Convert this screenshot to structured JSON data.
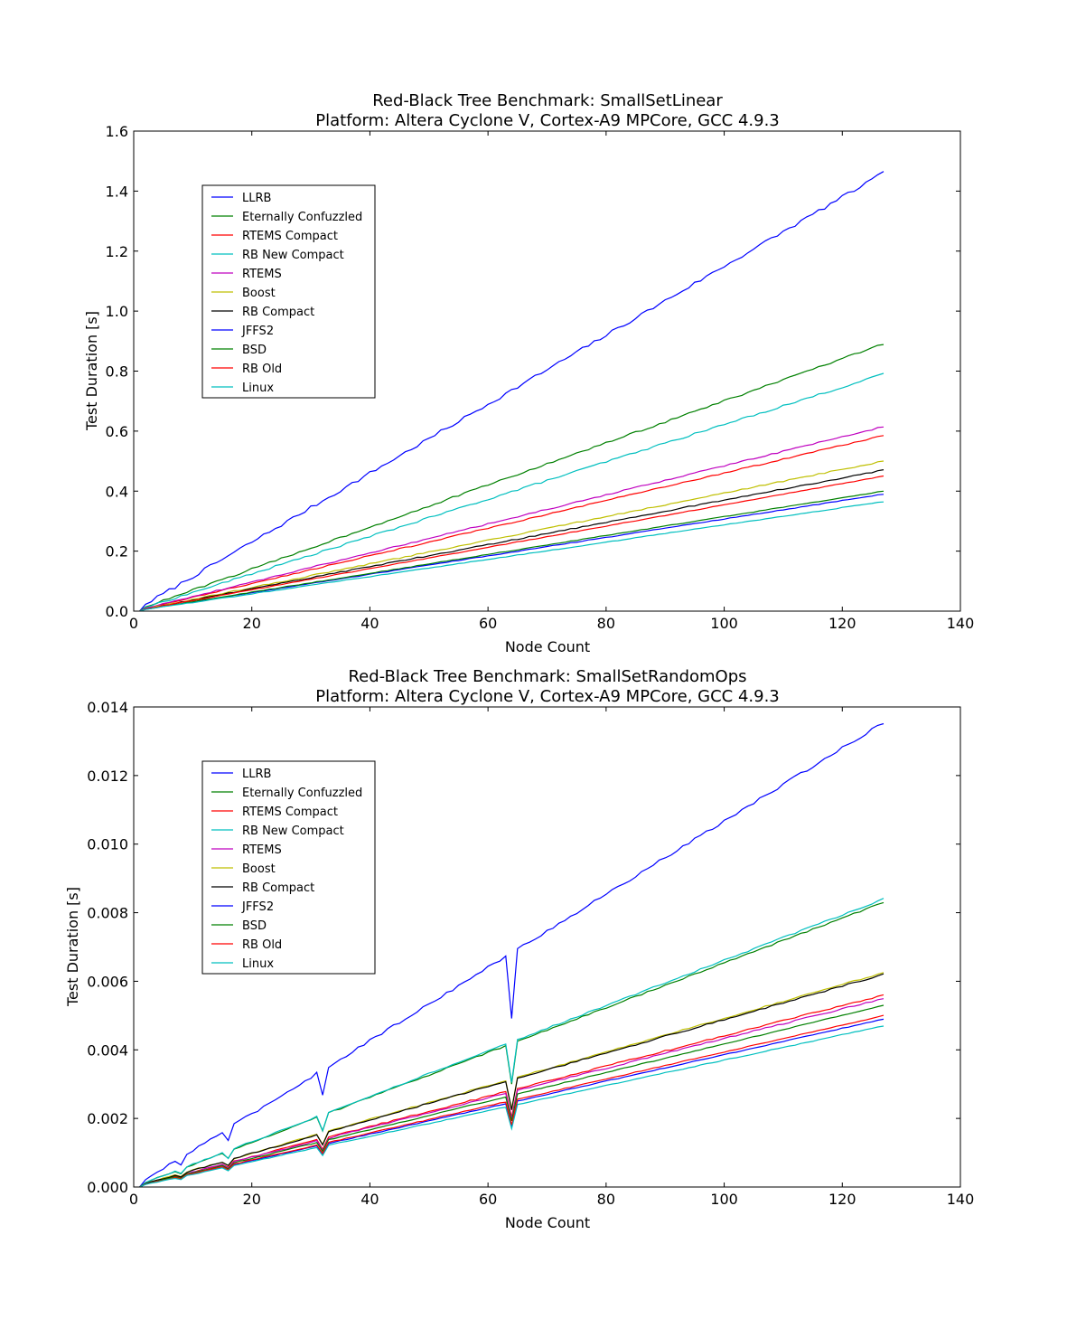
{
  "chart_data": [
    {
      "type": "line",
      "title": "Red-Black Tree Benchmark: SmallSetLinear",
      "subtitle": "Platform: Altera Cyclone V, Cortex-A9 MPCore, GCC 4.9.3",
      "xlabel": "Node Count",
      "ylabel": "Test Duration [s]",
      "xlim": [
        0,
        140
      ],
      "ylim": [
        0,
        1.6
      ],
      "xticks": [
        0,
        20,
        40,
        60,
        80,
        100,
        120,
        140
      ],
      "xtick_labels": [
        "0",
        "20",
        "40",
        "60",
        "80",
        "100",
        "120",
        "140"
      ],
      "yticks": [
        0,
        0.2,
        0.4,
        0.6,
        0.8,
        1.0,
        1.2,
        1.4,
        1.6
      ],
      "ytick_labels": [
        "0.0",
        "0.2",
        "0.4",
        "0.6",
        "0.8",
        "1.0",
        "1.2",
        "1.4",
        "1.6"
      ],
      "legend_position": "upper-left",
      "x_range": [
        1,
        127
      ],
      "series": [
        {
          "name": "LLRB",
          "color": "#0000ff",
          "end": 1.46,
          "curve": 1.0,
          "noise": 0.006
        },
        {
          "name": "Eternally Confuzzled",
          "color": "#008000",
          "end": 0.89,
          "curve": 1.0,
          "noise": 0.003
        },
        {
          "name": "RTEMS Compact",
          "color": "#ff0000",
          "end": 0.585,
          "curve": 1.0,
          "noise": 0.002
        },
        {
          "name": "RB New Compact",
          "color": "#00bfbf",
          "end": 0.79,
          "curve": 1.0,
          "noise": 0.003
        },
        {
          "name": "RTEMS",
          "color": "#bf00bf",
          "end": 0.615,
          "curve": 1.0,
          "noise": 0.002
        },
        {
          "name": "Boost",
          "color": "#bfbf00",
          "end": 0.5,
          "curve": 1.0,
          "noise": 0.002
        },
        {
          "name": "RB Compact",
          "color": "#000000",
          "end": 0.47,
          "curve": 1.0,
          "noise": 0.002
        },
        {
          "name": "JFFS2",
          "color": "#0000ff",
          "end": 0.39,
          "curve": 1.0,
          "noise": 0.001
        },
        {
          "name": "BSD",
          "color": "#008000",
          "end": 0.4,
          "curve": 1.0,
          "noise": 0.001
        },
        {
          "name": "RB Old",
          "color": "#ff0000",
          "end": 0.45,
          "curve": 1.0,
          "noise": 0.001
        },
        {
          "name": "Linux",
          "color": "#00bfbf",
          "end": 0.365,
          "curve": 1.0,
          "noise": 0.001
        }
      ]
    },
    {
      "type": "line",
      "title": "Red-Black Tree Benchmark: SmallSetRandomOps",
      "subtitle": "Platform: Altera Cyclone V, Cortex-A9 MPCore, GCC 4.9.3",
      "xlabel": "Node Count",
      "ylabel": "Test Duration [s]",
      "xlim": [
        0,
        140
      ],
      "ylim": [
        0,
        0.014
      ],
      "xticks": [
        0,
        20,
        40,
        60,
        80,
        100,
        120,
        140
      ],
      "xtick_labels": [
        "0",
        "20",
        "40",
        "60",
        "80",
        "100",
        "120",
        "140"
      ],
      "yticks": [
        0,
        0.002,
        0.004,
        0.006,
        0.008,
        0.01,
        0.012,
        0.014
      ],
      "ytick_labels": [
        "0.000",
        "0.002",
        "0.004",
        "0.006",
        "0.008",
        "0.010",
        "0.012",
        "0.014"
      ],
      "legend_position": "upper-left",
      "x_range": [
        1,
        127
      ],
      "dips": [
        {
          "x": 8,
          "factor": 0.75
        },
        {
          "x": 16,
          "factor": 0.8
        },
        {
          "x": 32,
          "factor": 0.78
        },
        {
          "x": 64,
          "factor": 0.72
        }
      ],
      "series": [
        {
          "name": "LLRB",
          "color": "#0000ff",
          "end": 0.01355,
          "curve": 1.0,
          "noise": 4e-05
        },
        {
          "name": "Eternally Confuzzled",
          "color": "#008000",
          "end": 0.0083,
          "curve": 1.0,
          "noise": 2e-05
        },
        {
          "name": "RTEMS Compact",
          "color": "#ff0000",
          "end": 0.0056,
          "curve": 1.0,
          "noise": 2e-05
        },
        {
          "name": "RB New Compact",
          "color": "#00bfbf",
          "end": 0.0084,
          "curve": 1.0,
          "noise": 2e-05
        },
        {
          "name": "RTEMS",
          "color": "#bf00bf",
          "end": 0.0055,
          "curve": 1.0,
          "noise": 2e-05
        },
        {
          "name": "Boost",
          "color": "#bfbf00",
          "end": 0.00625,
          "curve": 1.0,
          "noise": 2e-05
        },
        {
          "name": "RB Compact",
          "color": "#000000",
          "end": 0.0062,
          "curve": 1.0,
          "noise": 2e-05
        },
        {
          "name": "JFFS2",
          "color": "#0000ff",
          "end": 0.0049,
          "curve": 1.0,
          "noise": 1e-05
        },
        {
          "name": "BSD",
          "color": "#008000",
          "end": 0.0053,
          "curve": 1.0,
          "noise": 1e-05
        },
        {
          "name": "RB Old",
          "color": "#ff0000",
          "end": 0.005,
          "curve": 1.0,
          "noise": 1e-05
        },
        {
          "name": "Linux",
          "color": "#00bfbf",
          "end": 0.0047,
          "curve": 1.0,
          "noise": 1e-05
        }
      ]
    }
  ]
}
